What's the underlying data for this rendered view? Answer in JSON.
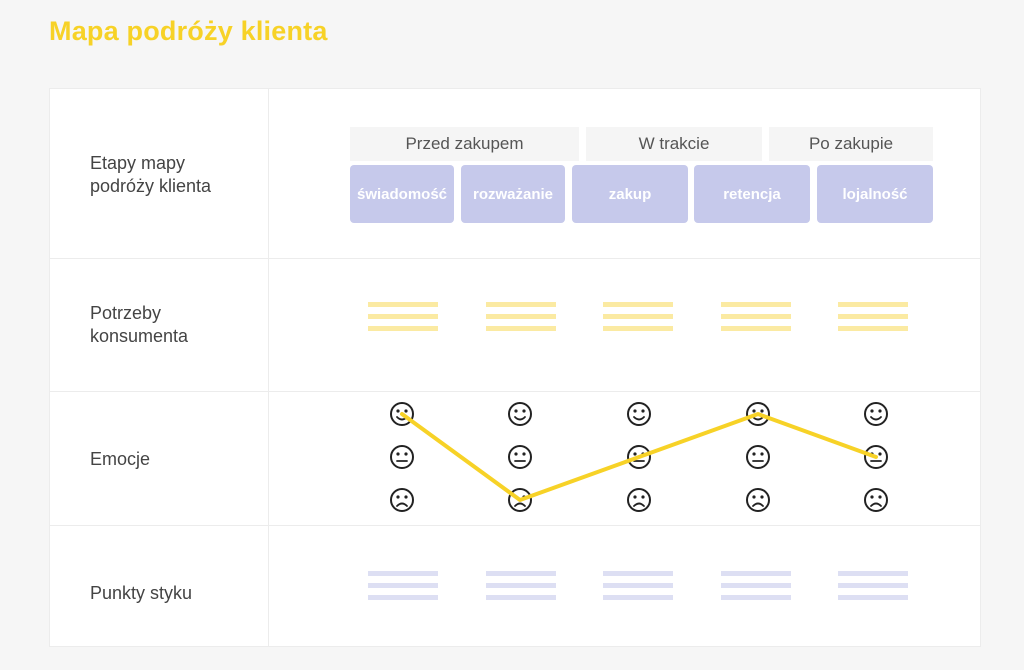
{
  "title": "Mapa podróży klienta",
  "rows": {
    "stages_label": "Etapy mapy podróży klienta",
    "needs_label": "Potrzeby konsumenta",
    "emotions_label": "Emocje",
    "touchpoints_label": "Punkty styku"
  },
  "phases": [
    "Przed zakupem",
    "W trakcie",
    "Po zakupie"
  ],
  "stages": [
    "świadomość",
    "rozważanie",
    "zakup",
    "retencja",
    "lojalność"
  ],
  "emotions": {
    "levels": [
      "happy",
      "neutral",
      "sad"
    ],
    "path": [
      "happy",
      "sad",
      "neutral",
      "happy",
      "neutral"
    ]
  },
  "colors": {
    "title": "#f7d227",
    "stage_box": "#c6c9eb",
    "needs_lines": "#fbeaa2",
    "touchpoint_lines": "#dddff3",
    "emotion_line": "#f7d227"
  },
  "icons": [
    "smiley-happy-icon",
    "smiley-neutral-icon",
    "smiley-sad-icon"
  ]
}
